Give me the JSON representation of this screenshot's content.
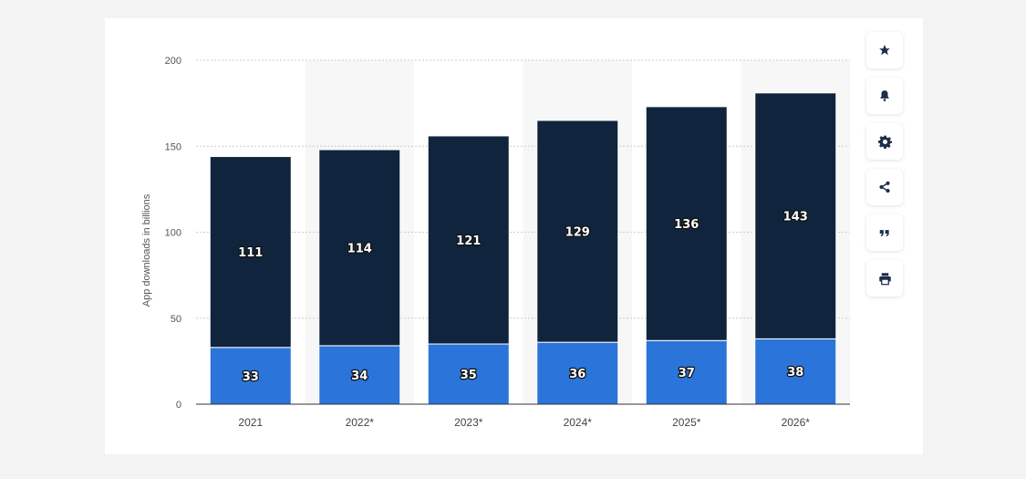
{
  "chart_data": {
    "type": "bar",
    "stacked": true,
    "categories": [
      "2021",
      "2022*",
      "2023*",
      "2024*",
      "2025*",
      "2026*"
    ],
    "series": [
      {
        "values": [
          33,
          34,
          35,
          36,
          37,
          38
        ],
        "color": "#2b74d9"
      },
      {
        "values": [
          111,
          114,
          121,
          129,
          136,
          143
        ],
        "color": "#10253d"
      }
    ],
    "ylabel": "App downloads in billions",
    "xlabel": "",
    "ylim": [
      0,
      200
    ],
    "yticks": [
      0,
      50,
      100,
      150,
      200
    ],
    "grid": true,
    "data_labels": true
  },
  "colors": {
    "page_background": "#f3f3f3",
    "card_background": "#ffffff",
    "alt_column_shade": "#f7f7f7",
    "gridline": "#cccccc"
  },
  "toolbar": {
    "icons": [
      "star-icon",
      "bell-icon",
      "gear-icon",
      "share-icon",
      "quote-icon",
      "print-icon"
    ]
  }
}
